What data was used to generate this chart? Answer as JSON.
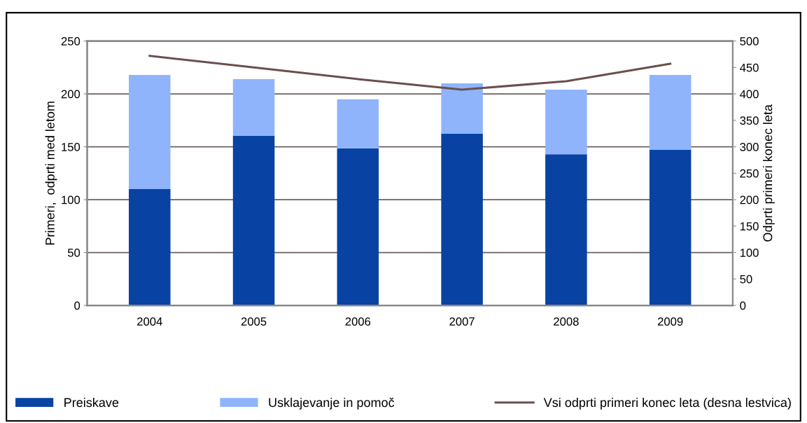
{
  "chart_data": {
    "type": "bar",
    "stacked": true,
    "categories": [
      "2004",
      "2005",
      "2006",
      "2007",
      "2008",
      "2009"
    ],
    "series": [
      {
        "name": "Preiskave",
        "color": "#0842a3",
        "values": [
          110,
          160.5,
          148.5,
          162.5,
          143,
          147
        ]
      },
      {
        "name": "Usklajevanje in pomoč",
        "color": "#8fb4fc",
        "values": [
          108,
          53.5,
          46.5,
          47.5,
          61,
          71
        ]
      },
      {
        "name": "Vsi odprti primeri konec leta (desna lestvica)",
        "type": "line",
        "axis": "y2",
        "color": "#6b4f4f",
        "values": [
          472,
          450,
          428,
          408,
          424,
          457
        ]
      }
    ],
    "ylabel": "Primeri,  odprti med letom",
    "y2label": "Odprti primeri konec leta",
    "ylim": [
      0,
      250
    ],
    "yticks": [
      0,
      50,
      100,
      150,
      200,
      250
    ],
    "y2lim": [
      0,
      500
    ],
    "y2ticks": [
      0,
      50,
      100,
      150,
      200,
      250,
      300,
      350,
      400,
      450,
      500
    ],
    "grid": "y",
    "legend": "bottom"
  }
}
